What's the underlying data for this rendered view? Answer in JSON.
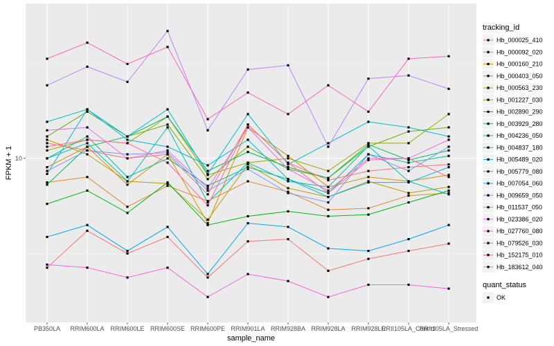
{
  "chart_data": {
    "type": "line",
    "xlabel": "sample_name",
    "ylabel": "FPKM + 1",
    "y_scale": "log10",
    "grid": true,
    "legend_placement": "right",
    "y_ticks": [
      10
    ],
    "y_tick_labels": [
      "10"
    ],
    "ylim": [
      1.4,
      64
    ],
    "categories": [
      "PB350LA",
      "RRIM600LA",
      "RRIM600LE",
      "RRIM600SE",
      "RRIM600PE",
      "RRIM901LA",
      "RRIM928BA",
      "RRIM928LA",
      "RRIM928LE",
      "RRII105LA_Control",
      "RRII105LA_Stressed"
    ],
    "legend": {
      "color_title": "tracking_id",
      "shape_title": "quant_status",
      "shape_entries": [
        "OK"
      ]
    },
    "series": [
      {
        "name": "Hb_000025_410",
        "color": "#F8766D",
        "values": [
          2.7,
          4.2,
          3.2,
          3.9,
          2.4,
          3.7,
          3.8,
          2.6,
          3.0,
          3.3,
          3.6
        ]
      },
      {
        "name": "Hb_000092_020",
        "color": "#E9842C",
        "values": [
          7.5,
          8.0,
          5.6,
          7.2,
          6.0,
          7.6,
          6.7,
          5.4,
          5.5,
          6.4,
          6.6
        ]
      },
      {
        "name": "Hb_000160_210",
        "color": "#D69100",
        "values": [
          9.0,
          11.5,
          7.3,
          10.5,
          4.6,
          14.5,
          10.3,
          7.1,
          8.0,
          7.6,
          8.2
        ]
      },
      {
        "name": "Hb_000403_050",
        "color": "#BC9D00",
        "values": [
          12.5,
          10.5,
          7.6,
          7.4,
          4.8,
          9.3,
          7.0,
          6.3,
          7.6,
          6.6,
          7.1
        ]
      },
      {
        "name": "Hb_000563_230",
        "color": "#9CA700",
        "values": [
          11.0,
          12.5,
          12.0,
          16.5,
          8.2,
          9.5,
          10.0,
          8.6,
          12.0,
          12.0,
          17.0
        ]
      },
      {
        "name": "Hb_001227_030",
        "color": "#6FB000",
        "values": [
          13.0,
          17.5,
          13.0,
          15.0,
          7.8,
          11.5,
          8.8,
          7.9,
          11.5,
          13.8,
          14.5
        ]
      },
      {
        "name": "Hb_002890_290",
        "color": "#00B813",
        "values": [
          5.8,
          6.8,
          5.2,
          7.5,
          4.5,
          5.0,
          5.3,
          5.0,
          5.1,
          5.9,
          6.8
        ]
      },
      {
        "name": "Hb_003929_280",
        "color": "#00BD61",
        "values": [
          7.3,
          11.5,
          13.0,
          16.5,
          8.6,
          10.8,
          9.0,
          7.9,
          11.8,
          9.8,
          11.0
        ]
      },
      {
        "name": "Hb_004236_050",
        "color": "#00C08E",
        "values": [
          10.0,
          13.0,
          8.0,
          10.0,
          7.2,
          9.0,
          7.8,
          6.6,
          10.5,
          9.5,
          10.3
        ]
      },
      {
        "name": "Hb_004837_180",
        "color": "#00C0B4",
        "values": [
          10.0,
          12.0,
          7.6,
          14.5,
          5.9,
          9.5,
          7.6,
          7.1,
          11.6,
          7.6,
          6.5
        ]
      },
      {
        "name": "Hb_005489_020",
        "color": "#00BDD4",
        "values": [
          15.5,
          18.0,
          13.0,
          18.0,
          8.3,
          17.0,
          9.3,
          12.0,
          15.5,
          14.5,
          13.0
        ]
      },
      {
        "name": "Hb_005779_080",
        "color": "#00B5EE",
        "values": [
          8.3,
          18.0,
          12.5,
          11.5,
          9.2,
          12.5,
          7.8,
          6.3,
          7.5,
          7.5,
          9.0
        ]
      },
      {
        "name": "Hb_007054_060",
        "color": "#00A7FF",
        "values": [
          3.9,
          4.5,
          3.3,
          4.4,
          2.5,
          4.6,
          4.4,
          3.4,
          3.3,
          3.8,
          4.5
        ]
      },
      {
        "name": "Hb_009659_050",
        "color": "#7F96FF",
        "values": [
          8.6,
          11.0,
          10.5,
          10.7,
          6.8,
          8.8,
          6.6,
          5.9,
          10.5,
          8.6,
          11.5
        ]
      },
      {
        "name": "Hb_011537_050",
        "color": "#BC81FF",
        "values": [
          24.0,
          30.0,
          25.0,
          46.0,
          14.0,
          29.0,
          30.5,
          11.5,
          26.0,
          27.0,
          23.0
        ]
      },
      {
        "name": "Hb_023386_020",
        "color": "#E26EF7",
        "values": [
          14.0,
          14.5,
          10.0,
          11.0,
          7.0,
          14.5,
          8.8,
          6.8,
          10.0,
          10.0,
          12.5
        ]
      },
      {
        "name": "Hb_027760_080",
        "color": "#F863DF",
        "values": [
          2.8,
          2.7,
          2.4,
          2.7,
          1.9,
          2.5,
          2.3,
          1.9,
          2.2,
          2.2,
          2.1
        ]
      },
      {
        "name": "Hb_079526_030",
        "color": "#FF62BF",
        "values": [
          33.0,
          40.0,
          31.0,
          38.0,
          16.0,
          22.0,
          17.0,
          24.0,
          17.5,
          33.0,
          34.0
        ]
      },
      {
        "name": "Hb_152175_010",
        "color": "#FF6A9A",
        "values": [
          11.5,
          12.5,
          12.0,
          9.5,
          5.7,
          15.0,
          9.5,
          6.6,
          9.8,
          10.0,
          8.0
        ]
      },
      {
        "name": "Hb_183612_040",
        "color": "#FA7476",
        "values": [
          12.0,
          11.0,
          10.0,
          10.5,
          6.5,
          15.0,
          9.5,
          7.7,
          8.6,
          9.0,
          9.3
        ]
      }
    ]
  }
}
